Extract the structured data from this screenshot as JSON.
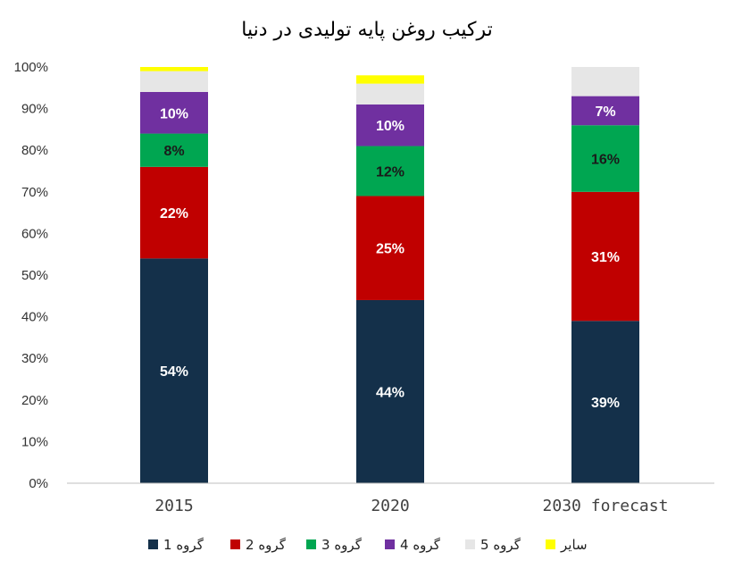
{
  "chart_data": {
    "type": "bar",
    "stacked": true,
    "title": "ترکیب روغن پایه تولیدی در دنیا",
    "categories": [
      "2015",
      "2020",
      "2030 forecast"
    ],
    "ylim": [
      0,
      100
    ],
    "yticks": [
      "0%",
      "10%",
      "20%",
      "30%",
      "40%",
      "50%",
      "60%",
      "70%",
      "80%",
      "90%",
      "100%"
    ],
    "grid": false,
    "legend_position": "bottom",
    "series": [
      {
        "name": "گروه 1",
        "color": "#14304a",
        "label_color": "#ffffff",
        "values": [
          54,
          44,
          39
        ],
        "labels": [
          "54%",
          "44%",
          "39%"
        ]
      },
      {
        "name": "گروه 2",
        "color": "#c00000",
        "label_color": "#ffffff",
        "values": [
          22,
          25,
          31
        ],
        "labels": [
          "22%",
          "25%",
          "31%"
        ]
      },
      {
        "name": "گروه 3",
        "color": "#00a651",
        "label_color": "#1a1a1a",
        "values": [
          8,
          12,
          16
        ],
        "labels": [
          "8%",
          "12%",
          "16%"
        ]
      },
      {
        "name": "گروه 4",
        "color": "#7030a0",
        "label_color": "#ffffff",
        "values": [
          10,
          10,
          7
        ],
        "labels": [
          "10%",
          "10%",
          "7%"
        ]
      },
      {
        "name": "گروه 5",
        "color": "#e6e6e6",
        "label_color": "#333333",
        "values": [
          5,
          5,
          7
        ],
        "labels": [
          "",
          "",
          ""
        ]
      },
      {
        "name": "سایر",
        "color": "#ffff00",
        "label_color": "#333333",
        "values": [
          1,
          2,
          0
        ],
        "labels": [
          "",
          "",
          ""
        ]
      }
    ]
  }
}
